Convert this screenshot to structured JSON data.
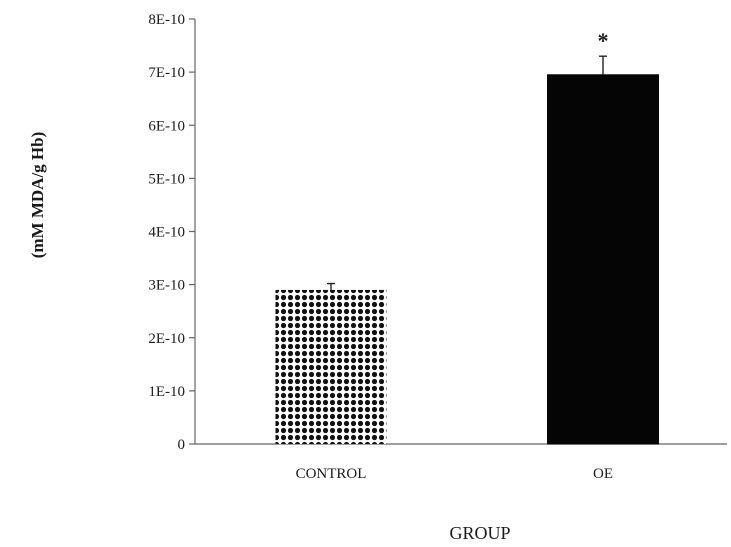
{
  "chart_data": {
    "type": "bar",
    "categories": [
      "CONTROL",
      "OE"
    ],
    "series": [
      {
        "values": [
          2.9e-10,
          6.95e-10
        ],
        "errors": [
          1.2e-11,
          3.5e-11
        ],
        "patterns": [
          "dotted",
          "solid"
        ]
      }
    ],
    "xlabel": "GROUP",
    "ylabel": "(mM MDA/g Hb)",
    "ylim": [
      0,
      8e-10
    ],
    "yticks": [
      {
        "value": 0,
        "label": "0"
      },
      {
        "value": 1e-10,
        "label": "1E-10"
      },
      {
        "value": 2e-10,
        "label": "2E-10"
      },
      {
        "value": 3e-10,
        "label": "3E-10"
      },
      {
        "value": 4e-10,
        "label": "4E-10"
      },
      {
        "value": 5e-10,
        "label": "5E-10"
      },
      {
        "value": 6e-10,
        "label": "6E-10"
      },
      {
        "value": 7e-10,
        "label": "7E-10"
      },
      {
        "value": 8e-10,
        "label": "8E-10"
      }
    ],
    "annotations": [
      {
        "category": "OE",
        "text": "*"
      }
    ],
    "grid": false,
    "legend": "none",
    "colors": {
      "bar_solid": "#050505",
      "dot": "#111111",
      "axis": "#666666",
      "text": "#1a1a1a"
    }
  }
}
